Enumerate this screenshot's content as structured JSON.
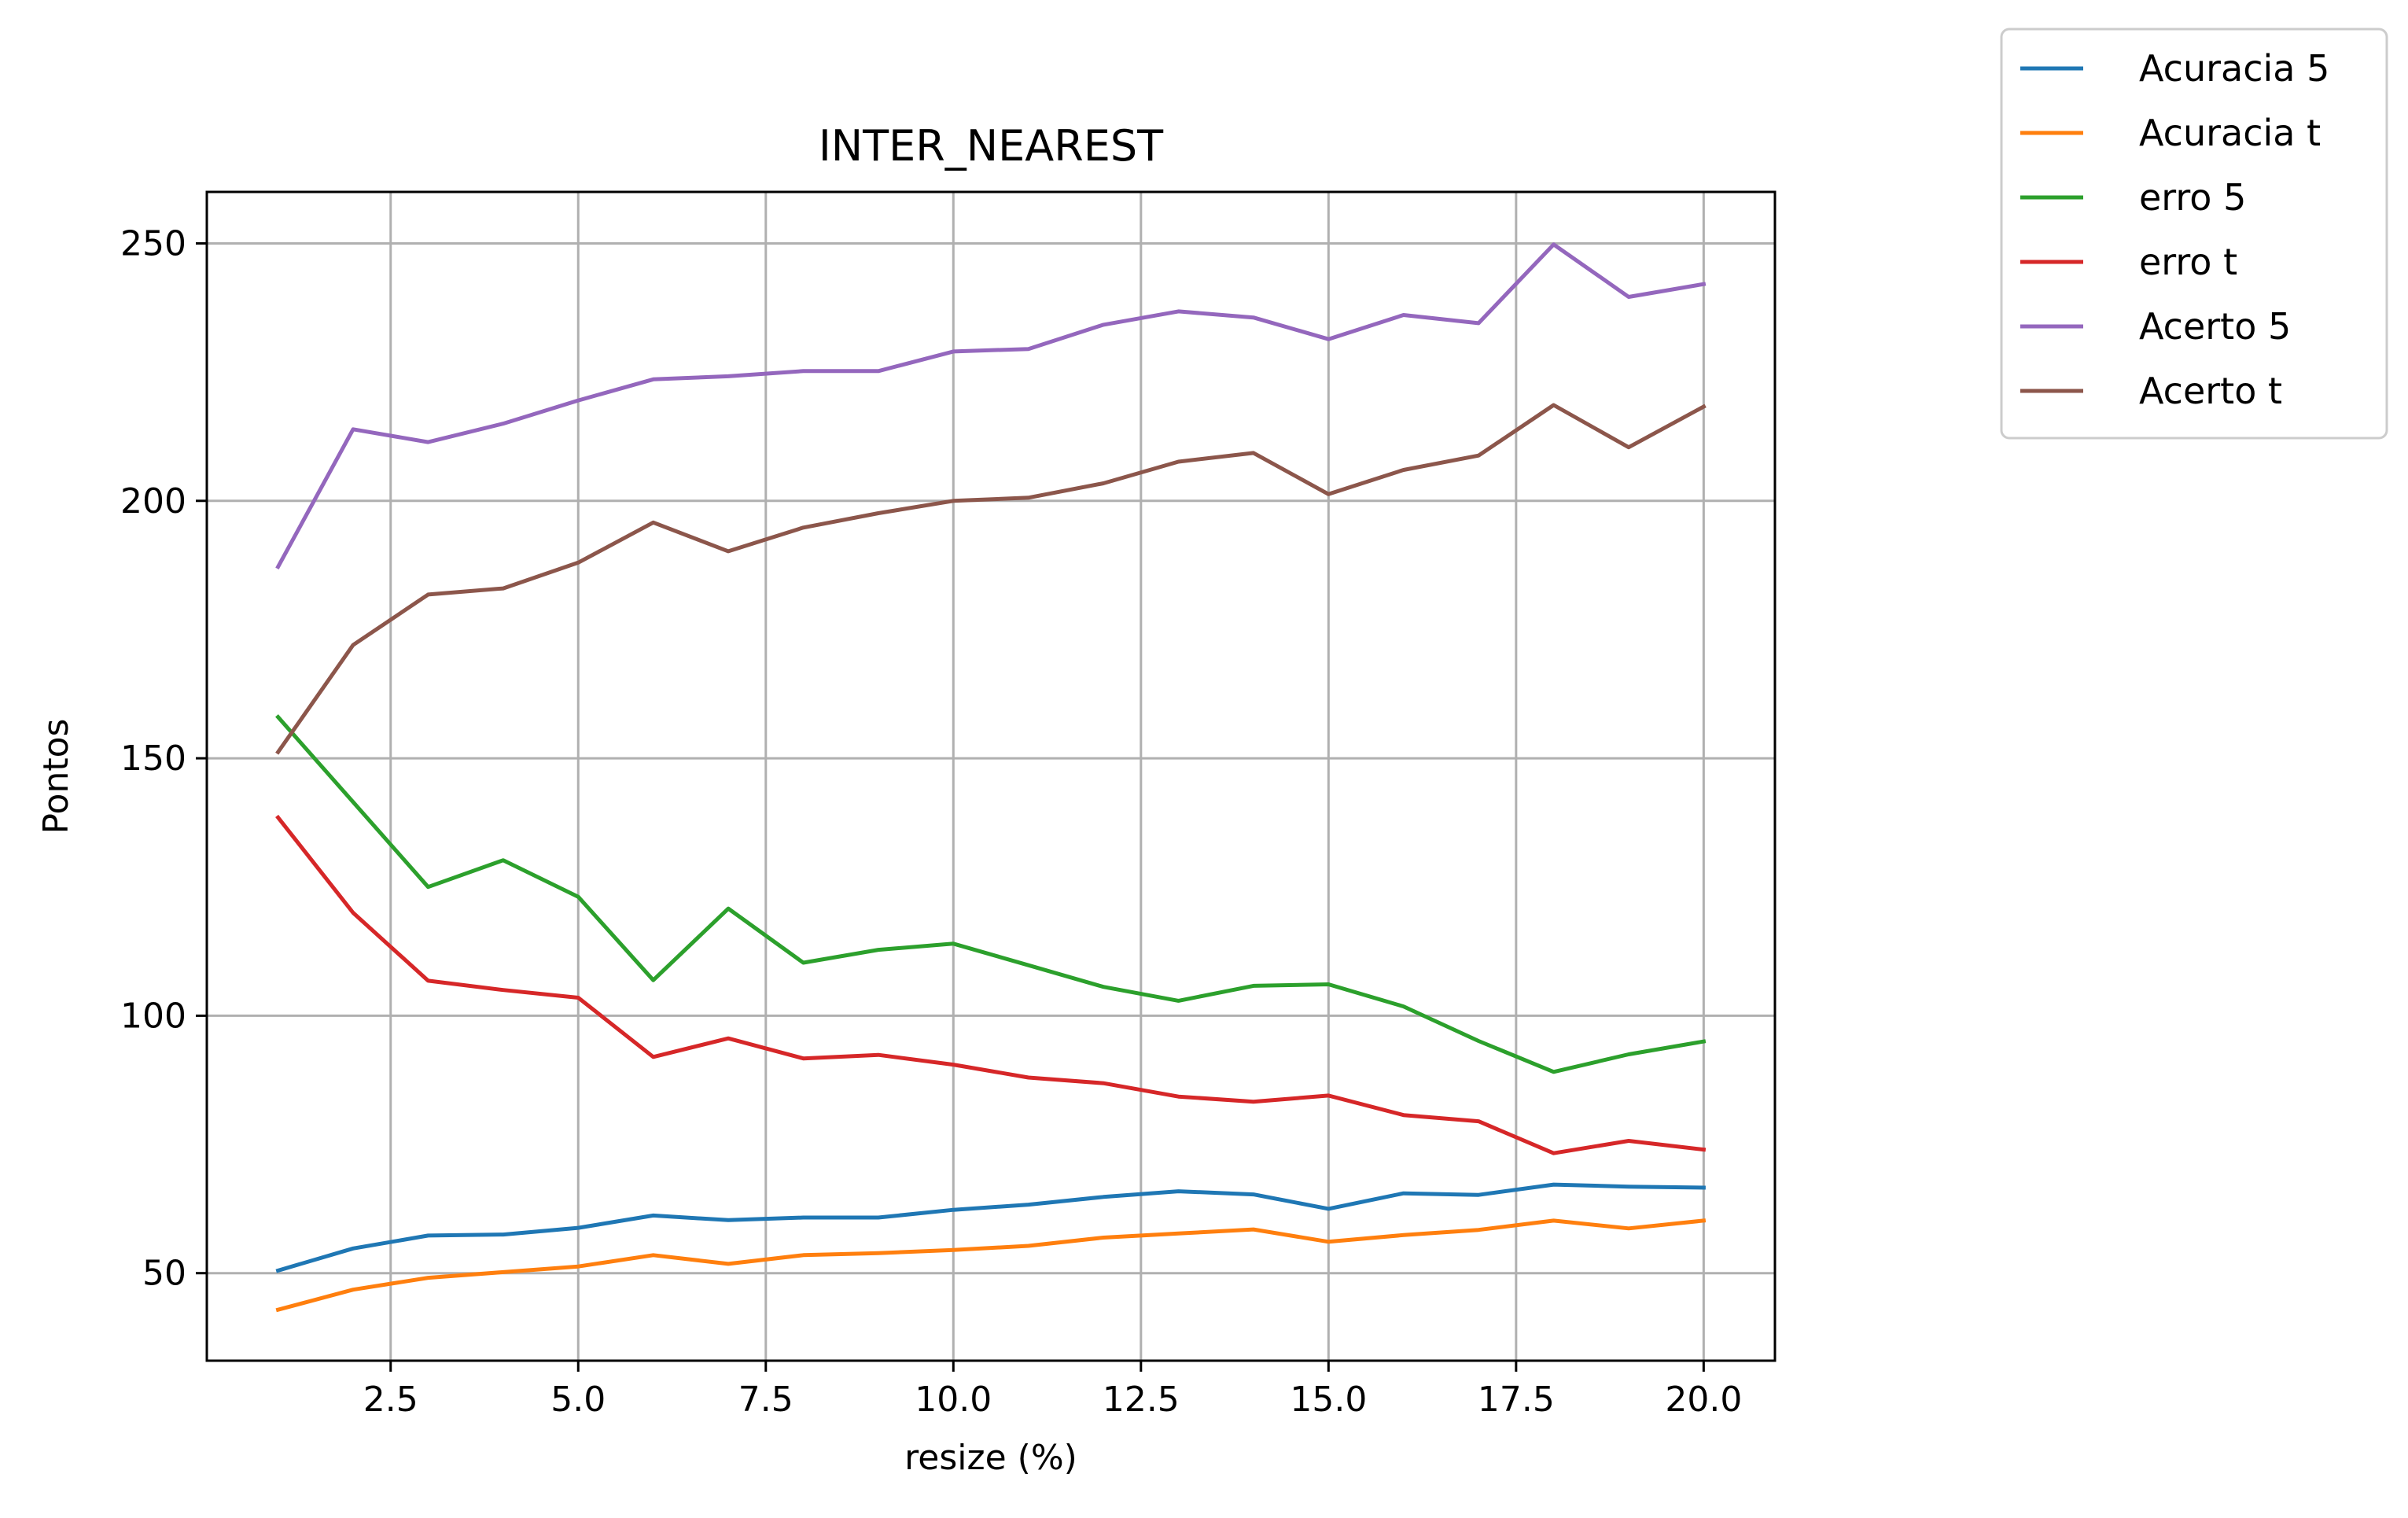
{
  "chart_data": {
    "type": "line",
    "title": "INTER_NEAREST",
    "xlabel": "resize (%)",
    "ylabel": "Pontos",
    "xlim": [
      0.05,
      20.95
    ],
    "ylim": [
      33,
      260
    ],
    "xticks": [
      "2.5",
      "5.0",
      "7.5",
      "10.0",
      "12.5",
      "15.0",
      "17.5",
      "20.0"
    ],
    "yticks": [
      "50",
      "100",
      "150",
      "200",
      "250"
    ],
    "grid": true,
    "legend_position": "outside-top-right",
    "x": [
      1,
      2,
      3,
      4,
      5,
      6,
      7,
      8,
      9,
      10,
      11,
      12,
      13,
      14,
      15,
      16,
      17,
      18,
      19,
      20
    ],
    "series": [
      {
        "name": "Acuracia 5",
        "color": "#1f77b4",
        "values": [
          50.5,
          54.8,
          57.3,
          57.5,
          58.8,
          61.2,
          60.3,
          60.8,
          60.8,
          62.3,
          63.3,
          64.8,
          65.9,
          65.3,
          62.5,
          65.5,
          65.2,
          67.2,
          66.8,
          66.6
        ]
      },
      {
        "name": "Acuracia t",
        "color": "#ff7f0e",
        "values": [
          42.9,
          46.8,
          49.1,
          50.2,
          51.3,
          53.5,
          51.8,
          53.5,
          53.9,
          54.5,
          55.3,
          56.9,
          57.7,
          58.5,
          56.1,
          57.4,
          58.4,
          60.2,
          58.7,
          60.2
        ]
      },
      {
        "name": "erro 5",
        "color": "#2ca02c",
        "values": [
          158.0,
          141.5,
          125.0,
          130.2,
          123.1,
          106.9,
          120.8,
          110.3,
          112.8,
          114.0,
          109.8,
          105.6,
          102.9,
          105.8,
          106.1,
          101.8,
          95.1,
          89.1,
          92.5,
          95.0
        ]
      },
      {
        "name": "erro t",
        "color": "#d62728",
        "values": [
          138.5,
          120.0,
          106.8,
          105.0,
          103.5,
          92.0,
          95.6,
          91.7,
          92.4,
          90.5,
          88.0,
          86.9,
          84.3,
          83.3,
          84.5,
          80.7,
          79.5,
          73.3,
          75.7,
          74.0
        ]
      },
      {
        "name": "Acerto 5",
        "color": "#9467bd",
        "values": [
          187.2,
          213.9,
          211.4,
          215.0,
          219.5,
          223.6,
          224.2,
          225.2,
          225.2,
          229.0,
          229.5,
          234.2,
          236.8,
          235.6,
          231.4,
          236.1,
          234.5,
          249.8,
          239.6,
          242.1
        ]
      },
      {
        "name": "Acerto t",
        "color": "#8c564b",
        "values": [
          151.2,
          172.0,
          181.8,
          183.0,
          188.0,
          195.8,
          190.2,
          194.8,
          197.6,
          200.0,
          200.6,
          203.4,
          207.6,
          209.3,
          201.3,
          206.0,
          208.8,
          218.6,
          210.4,
          218.3
        ]
      }
    ]
  }
}
